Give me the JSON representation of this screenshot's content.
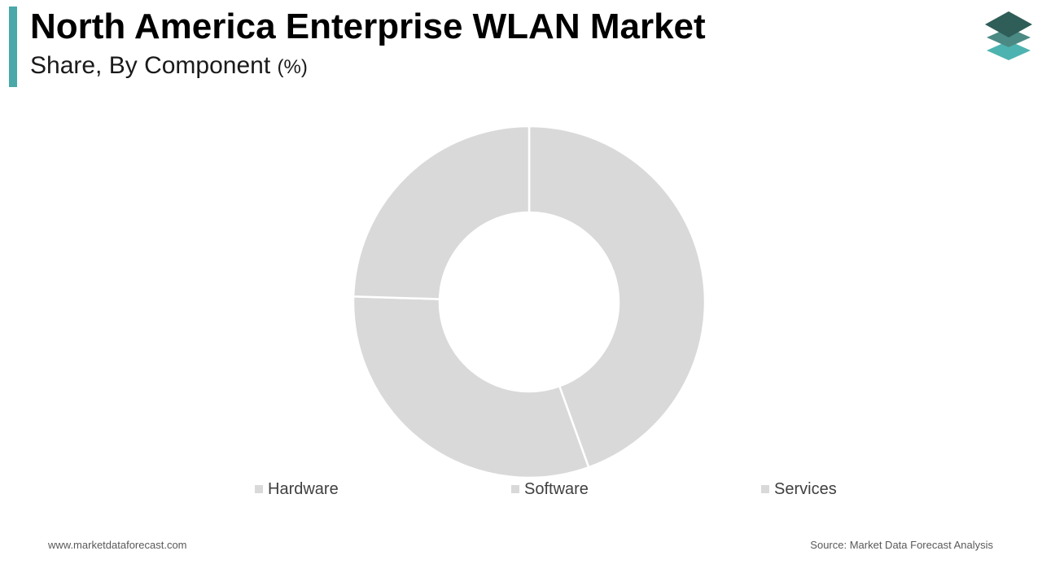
{
  "header": {
    "title": "North America Enterprise WLAN Market",
    "subtitle": "Share, By Component",
    "subtitle_unit": "(%)"
  },
  "chart_data": {
    "type": "pie",
    "variant": "donut",
    "title": "North America Enterprise WLAN Market",
    "subtitle": "Share, By Component (%)",
    "categories": [
      "Hardware",
      "Software",
      "Services"
    ],
    "values": [
      44.5,
      31,
      24.5
    ],
    "colors": [
      "#d9d9d9",
      "#d9d9d9",
      "#d9d9d9"
    ],
    "legend_position": "bottom"
  },
  "legend": [
    {
      "label": "Hardware",
      "color": "#d9d9d9"
    },
    {
      "label": "Software",
      "color": "#d9d9d9"
    },
    {
      "label": "Services",
      "color": "#d9d9d9"
    }
  ],
  "footer": {
    "website": "www.marketdataforecast.com",
    "source": "Source: Market Data Forecast Analysis"
  },
  "colors": {
    "accent": "#4aa8a8",
    "slice": "#d9d9d9",
    "logo_dark": "#2f5d57",
    "logo_mid": "#4b8a84",
    "logo_light": "#4db3b0"
  },
  "icons": {
    "logo": "stacked-layers-logo-icon"
  }
}
